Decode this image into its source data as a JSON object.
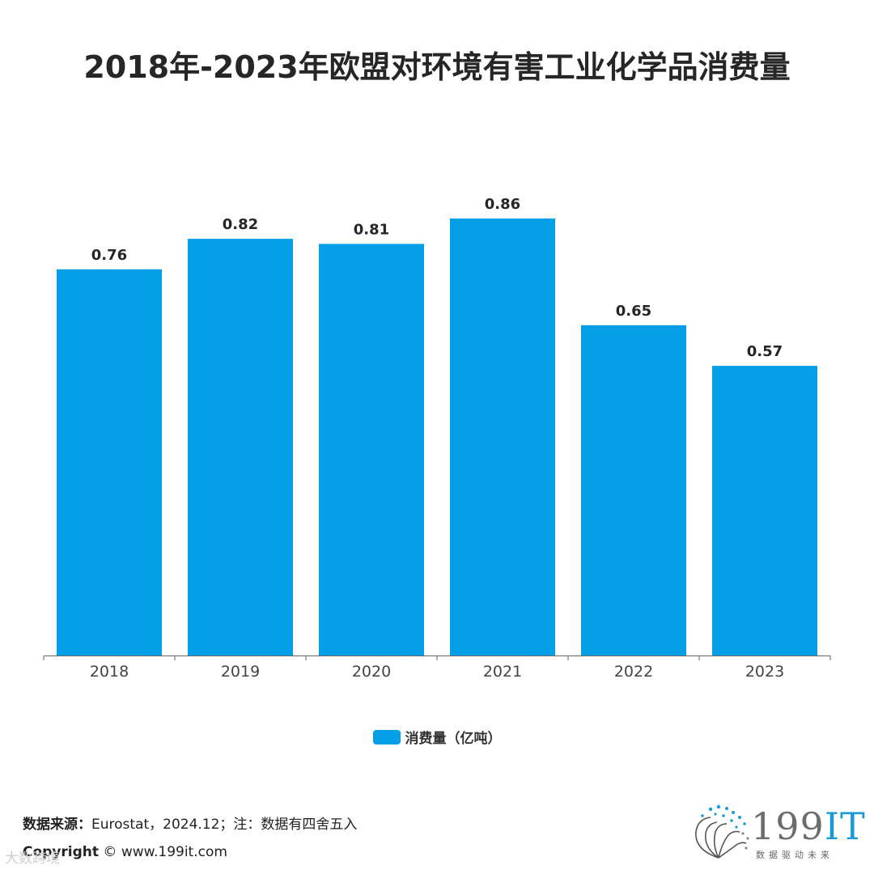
{
  "title": "2018年-2023年欧盟对环境有害工业化学品消费量",
  "chart_data": {
    "type": "bar",
    "title": "2018年-2023年欧盟对环境有害工业化学品消费量",
    "categories": [
      "2018",
      "2019",
      "2020",
      "2021",
      "2022",
      "2023"
    ],
    "series": [
      {
        "name": "消费量（亿吨）",
        "values": [
          0.76,
          0.82,
          0.81,
          0.86,
          0.65,
          0.57
        ]
      }
    ],
    "value_labels": [
      "0.76",
      "0.82",
      "0.81",
      "0.86",
      "0.65",
      "0.57"
    ],
    "xlabel": "",
    "ylabel": "",
    "ylim": [
      0,
      0.86
    ],
    "grid": false,
    "legend": "bottom",
    "bar_color": "#049fe6"
  },
  "legend": {
    "label": "消费量（亿吨）",
    "color": "#049fe6"
  },
  "footer": {
    "source_label": "数据来源：",
    "source_text": "Eurostat，2024.12；注：数据有四舍五入",
    "copyright_label": "Copyright",
    "copyright_text": "© www.199it.com"
  },
  "watermark": "大数跨境",
  "logo": {
    "number": "199",
    "suffix": "IT",
    "subtitle": "数据驱动未来"
  }
}
